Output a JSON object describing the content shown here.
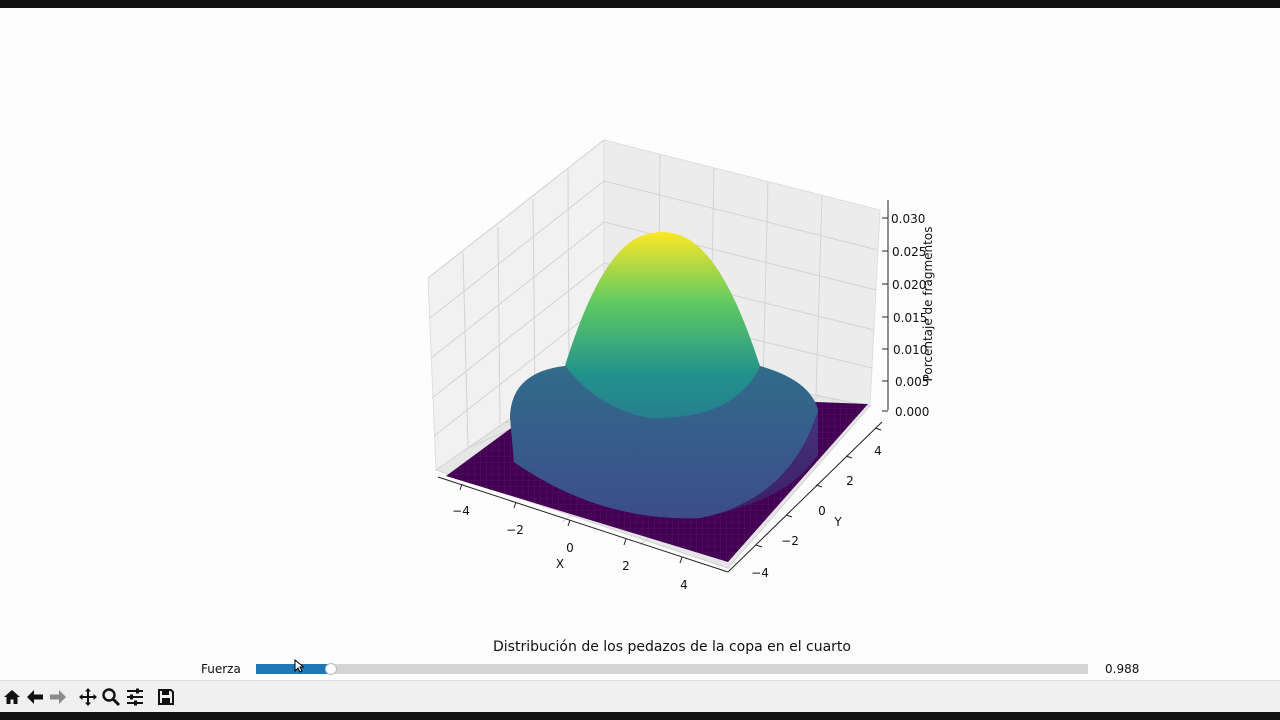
{
  "figure": {
    "title": "Distribución de los pedazos de la copa en el cuarto"
  },
  "slider": {
    "label": "Fuerza",
    "value": "0.988",
    "fraction": 0.09
  },
  "chart_data": {
    "type": "surface3d",
    "title": "",
    "xlabel": "X",
    "ylabel": "Y",
    "zlabel": "Porcentaje de fragmentos",
    "xticks": [
      "−4",
      "−2",
      "0",
      "2",
      "4"
    ],
    "yticks": [
      "−4",
      "−2",
      "0",
      "2",
      "4"
    ],
    "zticks": [
      "0.000",
      "0.005",
      "0.010",
      "0.015",
      "0.020",
      "0.025",
      "0.030"
    ],
    "xlim": [
      -5,
      5
    ],
    "ylim": [
      -5,
      5
    ],
    "zlim": [
      0,
      0.031
    ],
    "peak": 0.0275,
    "support_radius": 3.6,
    "colormap": "viridis"
  },
  "toolbar": {
    "buttons": [
      "home-icon",
      "back-icon",
      "forward-icon",
      "pan-icon",
      "zoom-icon",
      "configure-icon",
      "save-icon"
    ]
  },
  "colors": {
    "slider_fill": "#1f77b4",
    "slider_track": "#d4d4d4",
    "floor": "#440154",
    "peak": "#fde725"
  }
}
